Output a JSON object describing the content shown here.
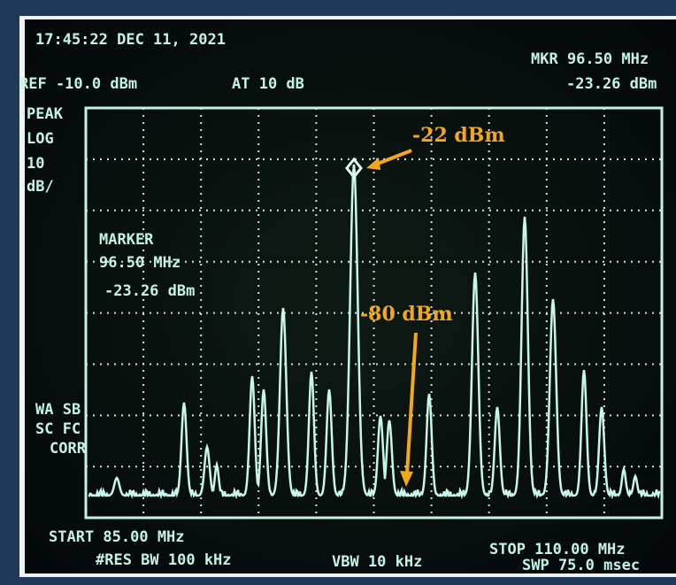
{
  "screen": {
    "timestamp": "17:45:22 DEC 11, 2021",
    "ref": "REF -10.0 dBm",
    "attenuation": "AT 10 dB",
    "marker_header": {
      "frequency": "MKR 96.50 MHz",
      "level": "-23.26 dBm"
    },
    "scale": [
      "PEAK",
      "LOG",
      "10",
      "dB/"
    ],
    "marker_box": [
      "MARKER",
      "96.50 MHz",
      "-23.26 dBm"
    ],
    "status": [
      "WA SB",
      "SC FC",
      "CORR"
    ],
    "start": "START 85.00 MHz",
    "res_bw": "#RES BW 100 kHz",
    "vbw": "VBW 10 kHz",
    "stop": "STOP 110.00 MHz",
    "sweep": "SWP 75.0 msec"
  },
  "annotations": {
    "peak": "-22 dBm",
    "floor": "-80 dBm"
  }
}
